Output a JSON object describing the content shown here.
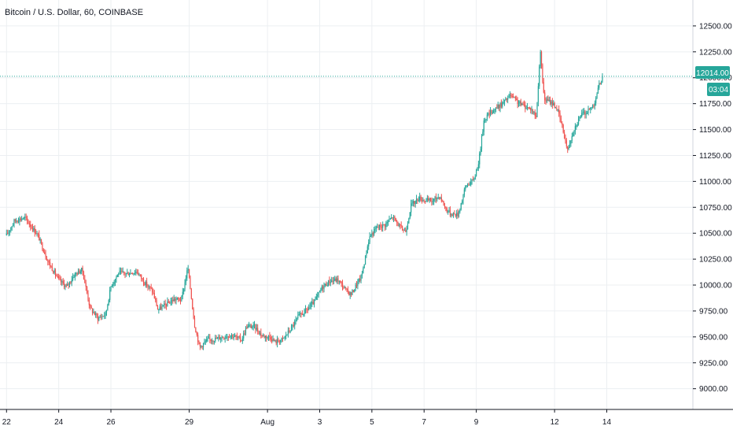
{
  "header": {
    "title": "Bitcoin / U.S. Dollar, 60, COINBASE"
  },
  "price_axis": {
    "ticks": [
      "12500.00",
      "12250.00",
      "12000.00",
      "11750.00",
      "11500.00",
      "11250.00",
      "11000.00",
      "10750.00",
      "10500.00",
      "10250.00",
      "10000.00",
      "9750.00",
      "9500.00",
      "9250.00",
      "9000.00"
    ],
    "last_price_label": "12014.00",
    "countdown_label": "03:04"
  },
  "time_axis": {
    "ticks": [
      "22",
      "24",
      "26",
      "29",
      "Aug",
      "3",
      "5",
      "7",
      "9",
      "12",
      "14"
    ]
  },
  "colors": {
    "up": "#26a69a",
    "down": "#ef5350",
    "grid": "#eceff2",
    "last_price_line": "#26a69a",
    "axis_text": "#131722"
  },
  "chart_data": {
    "type": "candlestick",
    "title": "Bitcoin / U.S. Dollar, 60, COINBASE",
    "interval": "60",
    "ylim": [
      8800,
      12750
    ],
    "x_tick_labels": [
      "22",
      "24",
      "26",
      "29",
      "Aug",
      "3",
      "5",
      "7",
      "9",
      "12",
      "14"
    ],
    "last_price": 12014.0,
    "path": [
      [
        0,
        10480
      ],
      [
        0.3,
        10620
      ],
      [
        0.7,
        10650
      ],
      [
        1.2,
        10480
      ],
      [
        1.6,
        10220
      ],
      [
        2.0,
        10050
      ],
      [
        2.3,
        9980
      ],
      [
        2.6,
        10100
      ],
      [
        2.9,
        10150
      ],
      [
        3.2,
        9780
      ],
      [
        3.5,
        9680
      ],
      [
        3.8,
        9720
      ],
      [
        4.0,
        9990
      ],
      [
        4.3,
        10120
      ],
      [
        4.6,
        10110
      ],
      [
        5.0,
        10130
      ],
      [
        5.3,
        10020
      ],
      [
        5.6,
        9940
      ],
      [
        5.8,
        9760
      ],
      [
        6.1,
        9810
      ],
      [
        6.4,
        9860
      ],
      [
        6.7,
        9860
      ],
      [
        6.95,
        10170
      ],
      [
        7.2,
        9620
      ],
      [
        7.4,
        9400
      ],
      [
        7.7,
        9470
      ],
      [
        8.0,
        9480
      ],
      [
        8.3,
        9500
      ],
      [
        8.6,
        9520
      ],
      [
        9.0,
        9470
      ],
      [
        9.2,
        9600
      ],
      [
        9.5,
        9600
      ],
      [
        9.8,
        9510
      ],
      [
        10.1,
        9500
      ],
      [
        10.3,
        9450
      ],
      [
        10.6,
        9480
      ],
      [
        10.9,
        9580
      ],
      [
        11.2,
        9700
      ],
      [
        11.5,
        9760
      ],
      [
        11.8,
        9840
      ],
      [
        12.1,
        9980
      ],
      [
        12.4,
        10040
      ],
      [
        12.7,
        10050
      ],
      [
        13.0,
        9950
      ],
      [
        13.2,
        9910
      ],
      [
        13.4,
        10000
      ],
      [
        13.6,
        10080
      ],
      [
        13.9,
        10460
      ],
      [
        14.2,
        10560
      ],
      [
        14.5,
        10580
      ],
      [
        14.8,
        10660
      ],
      [
        15.1,
        10550
      ],
      [
        15.3,
        10520
      ],
      [
        15.5,
        10770
      ],
      [
        15.8,
        10840
      ],
      [
        16.0,
        10820
      ],
      [
        16.3,
        10810
      ],
      [
        16.6,
        10860
      ],
      [
        16.8,
        10750
      ],
      [
        17.0,
        10690
      ],
      [
        17.3,
        10680
      ],
      [
        17.6,
        10960
      ],
      [
        17.9,
        11010
      ],
      [
        18.1,
        11200
      ],
      [
        18.3,
        11600
      ],
      [
        18.6,
        11680
      ],
      [
        19.0,
        11750
      ],
      [
        19.3,
        11830
      ],
      [
        19.6,
        11760
      ],
      [
        19.9,
        11720
      ],
      [
        20.1,
        11700
      ],
      [
        20.3,
        11620
      ],
      [
        20.45,
        12260
      ],
      [
        20.6,
        11790
      ],
      [
        20.9,
        11760
      ],
      [
        21.1,
        11700
      ],
      [
        21.3,
        11520
      ],
      [
        21.5,
        11300
      ],
      [
        21.7,
        11480
      ],
      [
        22.0,
        11640
      ],
      [
        22.3,
        11680
      ],
      [
        22.5,
        11740
      ],
      [
        22.7,
        11920
      ],
      [
        22.85,
        12014
      ]
    ],
    "note_last_bar_index": "x_range_days_from_22",
    "x_range": [
      -0.25,
      26.3
    ]
  }
}
